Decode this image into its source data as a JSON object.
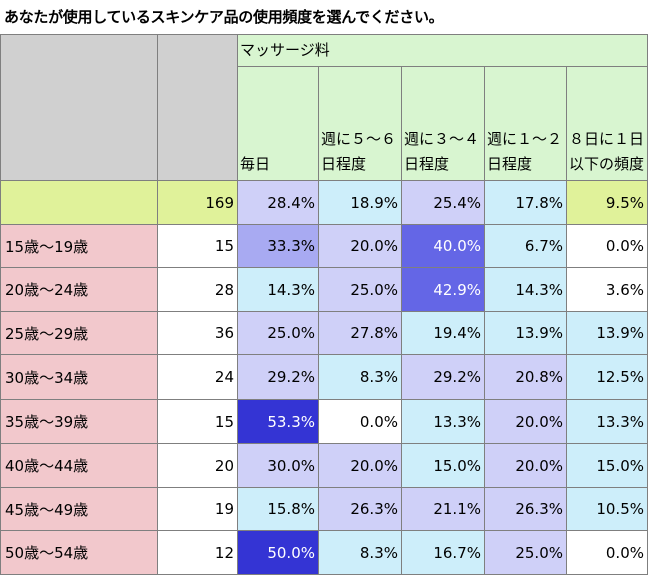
{
  "title": "あなたが使用しているスキンケア品の使用頻度を選んでください。",
  "group_header": "マッサージ料",
  "columns": [
    "毎日",
    "週に５～６日程度",
    "週に３～４日程度",
    "週に１～２日程度",
    "８日に１日以下の頻度"
  ],
  "total": {
    "n": "169",
    "values": [
      "28.4%",
      "18.9%",
      "25.4%",
      "17.8%",
      "9.5%"
    ]
  },
  "rows": [
    {
      "label": "15歳～19歳",
      "n": "15",
      "values": [
        "33.3%",
        "20.0%",
        "40.0%",
        "6.7%",
        "0.0%"
      ]
    },
    {
      "label": "20歳～24歳",
      "n": "28",
      "values": [
        "14.3%",
        "25.0%",
        "42.9%",
        "14.3%",
        "3.6%"
      ]
    },
    {
      "label": "25歳～29歳",
      "n": "36",
      "values": [
        "25.0%",
        "27.8%",
        "19.4%",
        "13.9%",
        "13.9%"
      ]
    },
    {
      "label": "30歳～34歳",
      "n": "24",
      "values": [
        "29.2%",
        "8.3%",
        "29.2%",
        "20.8%",
        "12.5%"
      ]
    },
    {
      "label": "35歳～39歳",
      "n": "15",
      "values": [
        "53.3%",
        "0.0%",
        "13.3%",
        "20.0%",
        "13.3%"
      ]
    },
    {
      "label": "40歳～44歳",
      "n": "20",
      "values": [
        "30.0%",
        "20.0%",
        "15.0%",
        "20.0%",
        "15.0%"
      ]
    },
    {
      "label": "45歳～49歳",
      "n": "19",
      "values": [
        "15.8%",
        "26.3%",
        "21.1%",
        "26.3%",
        "10.5%"
      ]
    },
    {
      "label": "50歳～54歳",
      "n": "12",
      "values": [
        "50.0%",
        "8.3%",
        "16.7%",
        "25.0%",
        "0.0%"
      ]
    }
  ],
  "colors": {
    "label_bg": "#f2c8cc",
    "header_bg": "#d8f5d0",
    "total_bg": "#e0f29a",
    "corner_bg": "#d0d0d0"
  }
}
